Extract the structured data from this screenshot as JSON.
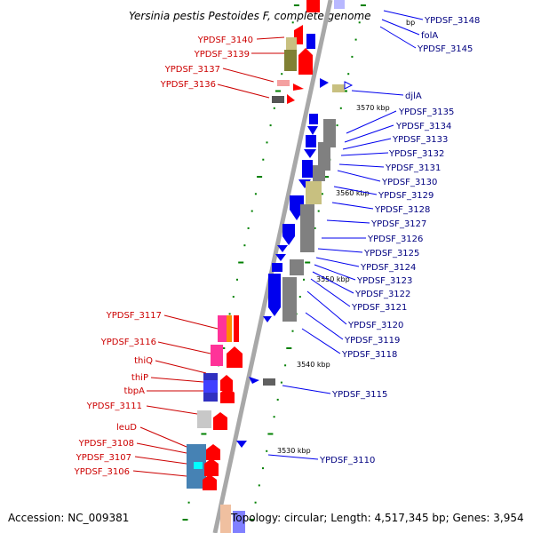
{
  "title": "Yersinia pestis Pestoides F, complete genome",
  "footer": {
    "accession": "Accession: NC_009381",
    "topology": "Topology: circular; Length: 4,517,345 bp; Genes: 3,954"
  },
  "kbp_labels": [
    "3570 kbp",
    "3560 kbp",
    "3550 kbp",
    "3540 kbp",
    "3530 kbp"
  ],
  "partial_kbp": "bp",
  "left_labels": [
    "YPDSF_3140",
    "YPDSF_3139",
    "YPDSF_3137",
    "YPDSF_3136",
    "YPDSF_3117",
    "YPDSF_3116",
    "thiQ",
    "thiP",
    "tbpA",
    "YPDSF_3111",
    "leuD",
    "YPDSF_3108",
    "YPDSF_3107",
    "YPDSF_3106"
  ],
  "right_labels": [
    "YPDSF_3148",
    "folA",
    "YPDSF_3145",
    "djlA",
    "YPDSF_3135",
    "YPDSF_3134",
    "YPDSF_3133",
    "YPDSF_3132",
    "YPDSF_3131",
    "YPDSF_3130",
    "YPDSF_3129",
    "YPDSF_3128",
    "YPDSF_3127",
    "YPDSF_3126",
    "YPDSF_3125",
    "YPDSF_3124",
    "YPDSF_3123",
    "YPDSF_3122",
    "YPDSF_3121",
    "YPDSF_3120",
    "YPDSF_3119",
    "YPDSF_3118",
    "YPDSF_3115",
    "YPDSF_3110"
  ],
  "colors": {
    "red_label": "#cc0000",
    "blue_label": "#000080",
    "gene_red": "#ff0000",
    "gene_blue": "#0000ee",
    "gene_gray": "#808080",
    "gene_olive": "#808033",
    "gene_khaki": "#c8c080",
    "gene_pink": "#ff3399",
    "gene_steelblue": "#4682b4",
    "axis": "#808080",
    "tick_green": "#008000"
  }
}
